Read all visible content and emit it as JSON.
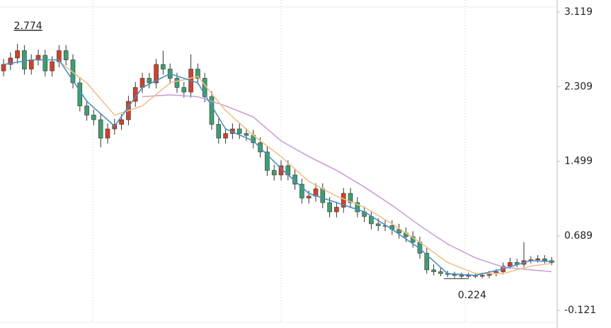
{
  "chart_data": {
    "type": "candlestick",
    "ylim": [
      -0.25,
      3.25
    ],
    "yticks": [
      3.119,
      2.309,
      1.499,
      0.689,
      -0.121
    ],
    "up_color": "#d0412b",
    "down_color": "#3f9e6e",
    "max_label": 2.774,
    "min_label": 0.224,
    "open": [
      2.48,
      2.55,
      2.62,
      2.7,
      2.5,
      2.6,
      2.65,
      2.48,
      2.58,
      2.7,
      2.6,
      2.35,
      2.1,
      2.0,
      1.95,
      1.75,
      1.85,
      1.9,
      1.95,
      2.15,
      2.3,
      2.4,
      2.35,
      2.55,
      2.5,
      2.4,
      2.3,
      2.25,
      2.5,
      2.4,
      2.2,
      1.9,
      1.75,
      1.8,
      1.85,
      1.8,
      1.78,
      1.7,
      1.6,
      1.4,
      1.35,
      1.45,
      1.35,
      1.25,
      1.1,
      1.12,
      1.2,
      1.05,
      0.95,
      1.0,
      1.15,
      1.05,
      0.95,
      0.9,
      0.82,
      0.8,
      0.8,
      0.76,
      0.72,
      0.68,
      0.62,
      0.5,
      0.32,
      0.3,
      0.28,
      0.27,
      0.26,
      0.25,
      0.26,
      0.25,
      0.26,
      0.28,
      0.3,
      0.36,
      0.4,
      0.38,
      0.42,
      0.43,
      0.44,
      0.42
    ],
    "high": [
      2.61,
      2.68,
      2.774,
      2.76,
      2.66,
      2.71,
      2.71,
      2.64,
      2.76,
      2.76,
      2.66,
      2.41,
      2.16,
      2.06,
      2.01,
      1.91,
      1.96,
      2.01,
      2.21,
      2.36,
      2.46,
      2.46,
      2.61,
      2.7,
      2.56,
      2.46,
      2.36,
      2.66,
      2.56,
      2.46,
      2.26,
      1.96,
      1.86,
      1.91,
      1.91,
      1.86,
      1.84,
      1.76,
      1.66,
      1.46,
      1.51,
      1.51,
      1.41,
      1.31,
      1.18,
      1.26,
      1.26,
      1.11,
      1.06,
      1.21,
      1.21,
      1.11,
      1.01,
      0.96,
      0.88,
      0.86,
      0.86,
      0.82,
      0.78,
      0.74,
      0.68,
      0.56,
      0.38,
      0.34,
      0.31,
      0.3,
      0.29,
      0.29,
      0.29,
      0.29,
      0.31,
      0.33,
      0.4,
      0.45,
      0.44,
      0.62,
      0.47,
      0.48,
      0.48,
      0.46
    ],
    "low": [
      2.42,
      2.49,
      2.56,
      2.44,
      2.44,
      2.54,
      2.42,
      2.42,
      2.52,
      2.54,
      2.29,
      2.04,
      1.94,
      1.89,
      1.65,
      1.69,
      1.79,
      1.84,
      1.89,
      2.09,
      2.24,
      2.29,
      2.29,
      2.44,
      2.34,
      2.24,
      2.19,
      2.19,
      2.34,
      2.14,
      1.84,
      1.69,
      1.69,
      1.74,
      1.74,
      1.72,
      1.64,
      1.54,
      1.34,
      1.29,
      1.29,
      1.29,
      1.19,
      1.04,
      1.04,
      1.06,
      0.99,
      0.89,
      0.89,
      0.94,
      0.99,
      0.89,
      0.84,
      0.76,
      0.74,
      0.74,
      0.7,
      0.66,
      0.62,
      0.56,
      0.44,
      0.28,
      0.26,
      0.25,
      0.24,
      0.23,
      0.224,
      0.23,
      0.23,
      0.23,
      0.23,
      0.25,
      0.27,
      0.33,
      0.35,
      0.35,
      0.39,
      0.4,
      0.39,
      0.37
    ],
    "close": [
      2.55,
      2.62,
      2.7,
      2.5,
      2.6,
      2.65,
      2.48,
      2.58,
      2.7,
      2.6,
      2.35,
      2.1,
      2.0,
      1.95,
      1.75,
      1.85,
      1.9,
      1.95,
      2.15,
      2.3,
      2.4,
      2.35,
      2.55,
      2.5,
      2.4,
      2.3,
      2.25,
      2.5,
      2.4,
      2.2,
      1.9,
      1.75,
      1.8,
      1.85,
      1.8,
      1.78,
      1.7,
      1.6,
      1.4,
      1.35,
      1.45,
      1.35,
      1.25,
      1.1,
      1.12,
      1.2,
      1.05,
      0.95,
      1.0,
      1.15,
      1.05,
      0.95,
      0.9,
      0.82,
      0.8,
      0.8,
      0.76,
      0.72,
      0.68,
      0.62,
      0.5,
      0.32,
      0.3,
      0.28,
      0.27,
      0.26,
      0.25,
      0.26,
      0.25,
      0.26,
      0.28,
      0.3,
      0.36,
      0.4,
      0.38,
      0.42,
      0.43,
      0.44,
      0.42,
      0.4
    ],
    "lines": [
      {
        "color": "#c7a2d6",
        "x": [
          20,
          24,
          28,
          32,
          36,
          40,
          44,
          48,
          52,
          56,
          60,
          64,
          68,
          72,
          76,
          79
        ],
        "values": [
          2.2,
          2.22,
          2.2,
          2.1,
          1.98,
          1.72,
          1.55,
          1.4,
          1.22,
          1.02,
          0.8,
          0.6,
          0.45,
          0.35,
          0.32,
          0.3
        ]
      },
      {
        "color": "#f0c08a",
        "x": [
          8,
          12,
          16,
          20,
          24,
          28,
          32,
          36,
          40,
          44,
          48,
          52,
          56,
          60,
          64,
          68,
          72,
          76,
          79
        ],
        "values": [
          2.58,
          2.35,
          2.0,
          2.1,
          2.35,
          2.42,
          2.05,
          1.78,
          1.55,
          1.28,
          1.12,
          1.0,
          0.82,
          0.62,
          0.4,
          0.28,
          0.28,
          0.36,
          0.39
        ]
      },
      {
        "color": "#4a8fc1",
        "x": [
          0,
          4,
          8,
          12,
          16,
          20,
          24,
          28,
          32,
          36,
          40,
          44,
          48,
          52,
          56,
          60,
          64,
          68,
          72,
          76,
          79
        ],
        "values": [
          2.55,
          2.6,
          2.6,
          2.15,
          1.88,
          2.3,
          2.45,
          2.35,
          1.85,
          1.72,
          1.42,
          1.15,
          1.05,
          0.95,
          0.76,
          0.55,
          0.28,
          0.26,
          0.33,
          0.42,
          0.41
        ]
      }
    ]
  }
}
